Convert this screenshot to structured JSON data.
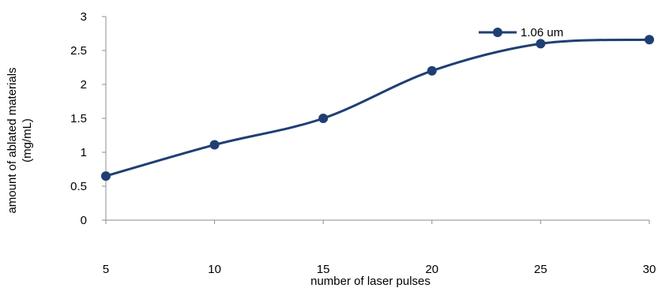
{
  "chart_data": {
    "type": "line",
    "smooth": true,
    "title": "",
    "xlabel": "number of laser pulses",
    "ylabel_lines": [
      "amount of ablated materials",
      "(mg/mL)"
    ],
    "x": [
      5,
      10,
      15,
      20,
      25,
      30
    ],
    "xticks": [
      "5",
      "10",
      "15",
      "20",
      "25",
      "30"
    ],
    "xlim": [
      5,
      30
    ],
    "ylim": [
      0,
      3
    ],
    "yticks": [
      "0",
      "0.5",
      "1",
      "1.5",
      "2",
      "2.5",
      "3"
    ],
    "grid": false,
    "legend_position": "top-right",
    "series": [
      {
        "name": "1.06 um",
        "color": "#1f3f74",
        "marker": "circle",
        "values": [
          0.65,
          1.11,
          1.5,
          2.2,
          2.6,
          2.66
        ]
      }
    ]
  }
}
